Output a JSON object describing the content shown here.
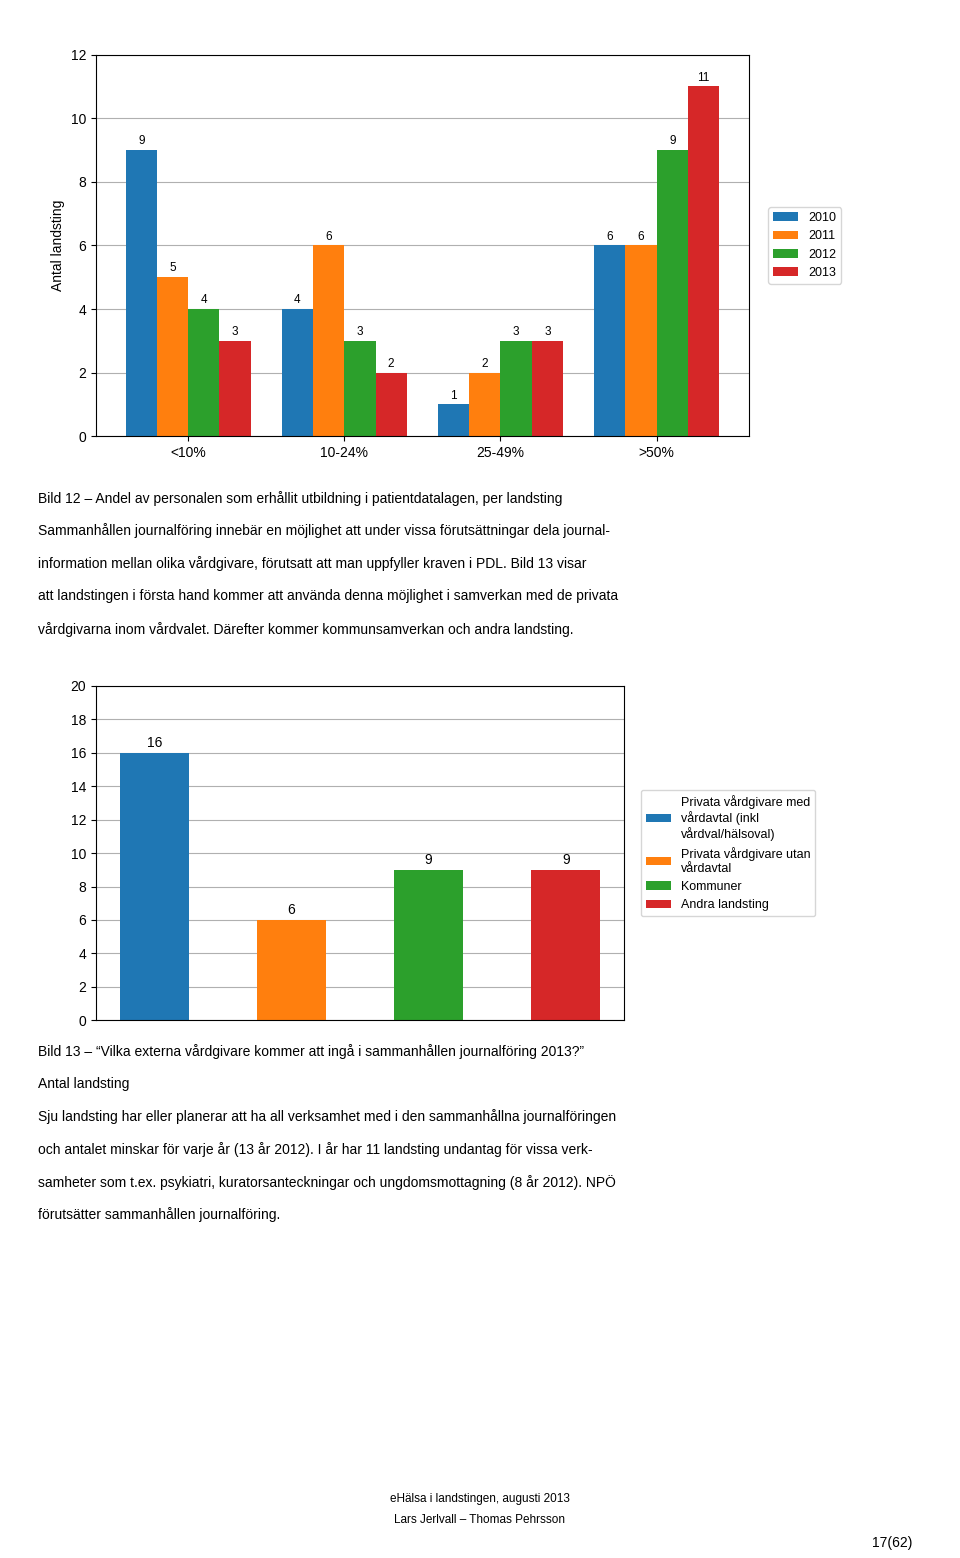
{
  "chart_data": [
    {
      "type": "bar",
      "categories": [
        "<10%",
        "10-24%",
        "25-49%",
        ">50%"
      ],
      "series": [
        {
          "name": "2010",
          "values": [
            9,
            4,
            1,
            6
          ]
        },
        {
          "name": "2011",
          "values": [
            5,
            6,
            2,
            6
          ]
        },
        {
          "name": "2012",
          "values": [
            4,
            3,
            3,
            9
          ]
        },
        {
          "name": "2013",
          "values": [
            3,
            2,
            3,
            11
          ]
        }
      ],
      "ylabel": "Antal landsting",
      "ylim": [
        0,
        12
      ],
      "yticks": [
        0,
        2,
        4,
        6,
        8,
        10,
        12
      ],
      "grid": true,
      "legend": "right",
      "data_labels": true,
      "annotations": [
        "Bild 12 – Andel av personalen som erhållit utbildning i patientdatalagen, per landsting",
        "Sammanhållen journalföring innebär en möjlighet att under vissa förutsättningar dela journal-",
        "information mellan olika vårdgivare, förutsatt att man uppfyller kraven i PDL. Bild 13 visar",
        "att landstingen i första hand kommer att använda denna möjlighet i samverkan med de privata",
        "vårdgivarna inom vårdvalet. Därefter kommer kommunsamverkan och andra landsting."
      ]
    },
    {
      "type": "bar",
      "categories": [
        "Privata vårdgivare med\nvårdavtal (inkl\nvårdval/hälsoval)",
        "Privata vårdgivare utan\nvårdavtal",
        "Kommuner",
        "Andra landsting"
      ],
      "values": [
        16,
        6,
        9,
        9
      ],
      "ylim": [
        0,
        20
      ],
      "yticks": [
        0,
        2,
        4,
        6,
        8,
        10,
        12,
        14,
        16,
        18,
        20
      ],
      "grid": true,
      "legend": "right",
      "data_labels": true,
      "tick_labels": "y",
      "annotations": [
        "Bild 13 – “Vilka externa vårdgivare kommer att ingå i sammanhållen journalföring 2013?”",
        "Antal landsting",
        "Sju landsting har eller planerar att ha all verksamhet med i den sammanhållna journalföringen",
        "och antalet minskar för varje år (13 år 2012). I år har 11 landsting undantag för vissa verk-",
        "samheter som t.ex. psykiatri, kuratorsanteckningar och ungdomsmottagning (8 år 2012). NPÖ",
        "förutsätter sammanhållen journalföring."
      ]
    }
  ],
  "annotations": [
    "eHälsa i landstingen, augusti 2013",
    "Lars Jerlvall – Thomas Pehrsson",
    "17(62)"
  ]
}
